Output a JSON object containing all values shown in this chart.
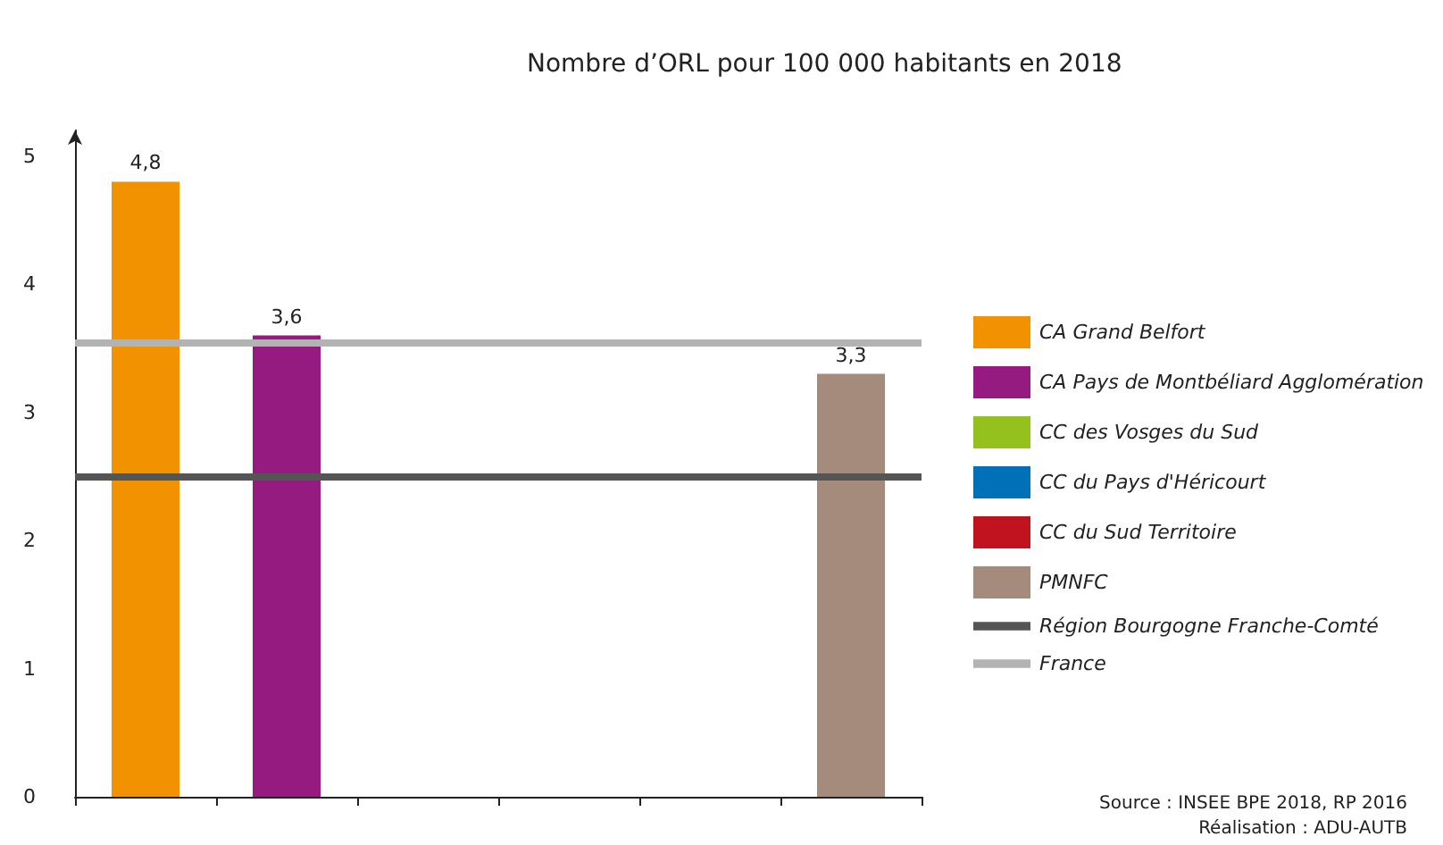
{
  "chart_data": {
    "type": "bar",
    "title": "Nombre d’ORL pour 100 000 habitants en 2018",
    "categories": [
      null,
      null,
      null,
      null,
      null,
      null
    ],
    "stacked": true,
    "ylim": [
      0,
      5.2
    ],
    "yticks": [
      0,
      1,
      2,
      3,
      4,
      5
    ],
    "grid": false,
    "legend": "right",
    "series": [
      {
        "name": "CA Grand Belfort",
        "color": "#f39200",
        "values": [
          4.8,
          null,
          null,
          null,
          null,
          null
        ],
        "value_labels": [
          "4,8",
          null,
          null,
          null,
          null,
          null
        ]
      },
      {
        "name": "CA Pays de Montbéliard Agglomération",
        "color": "#951b81",
        "values": [
          null,
          3.6,
          null,
          null,
          null,
          null
        ],
        "value_labels": [
          null,
          "3,6",
          null,
          null,
          null,
          null
        ]
      },
      {
        "name": "CC des Vosges du Sud",
        "color": "#95c11f",
        "values": [
          null,
          null,
          null,
          null,
          null,
          null
        ]
      },
      {
        "name": "CC du Pays d'Héricourt",
        "color": "#0070b8",
        "values": [
          null,
          null,
          null,
          null,
          null,
          null
        ]
      },
      {
        "name": "CC du Sud Territoire",
        "color": "#c1121f",
        "values": [
          null,
          null,
          null,
          null,
          null,
          null
        ]
      },
      {
        "name": "PMNFC",
        "color": "#a58b7c",
        "values": [
          null,
          null,
          null,
          null,
          null,
          3.3
        ],
        "value_labels": [
          null,
          null,
          null,
          null,
          null,
          "3,3"
        ]
      }
    ],
    "ref_lines": [
      {
        "axis": "y",
        "value": 2.5,
        "label": "Région Bourgogne Franche-Comté",
        "color": "#555555"
      },
      {
        "axis": "y",
        "value": 3.55,
        "label": "France",
        "color": "#b3b3b3"
      }
    ],
    "annotations": [
      "Source : INSEE BPE 2018, RP 2016",
      "Réalisation : ADU-AUTB"
    ]
  }
}
